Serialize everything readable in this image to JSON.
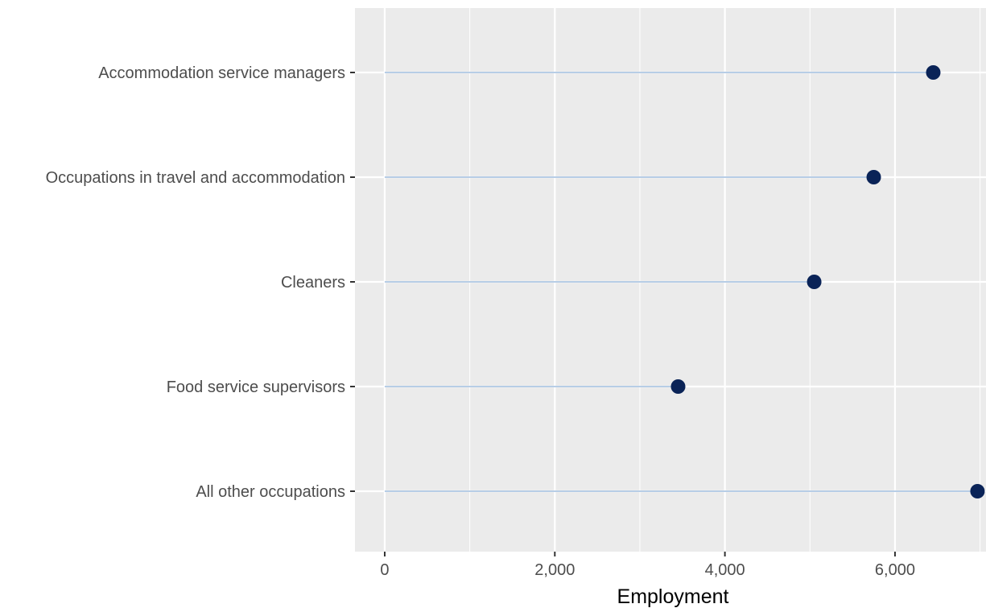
{
  "chart_data": {
    "type": "lollipop",
    "orientation": "horizontal",
    "xlabel": "Employment",
    "ylabel": "",
    "xlim": [
      -350,
      7070
    ],
    "x_ticks": [
      0,
      2000,
      4000,
      6000
    ],
    "x_tick_labels": [
      "0",
      "2,000",
      "4,000",
      "6,000"
    ],
    "categories": [
      "Accommodation service managers",
      "Occupations in travel and accommodation",
      "Cleaners",
      "Food service supervisors",
      "All other occupations"
    ],
    "values": [
      6450,
      5750,
      5050,
      3450,
      6970
    ],
    "grid": true,
    "legend": "none",
    "colors": {
      "panel_background": "#ebebeb",
      "grid": "#ffffff",
      "stem": "#b7cde6",
      "point": "#0a2357",
      "tick_label": "#4d4d4d",
      "axis_title": "#000000"
    }
  }
}
